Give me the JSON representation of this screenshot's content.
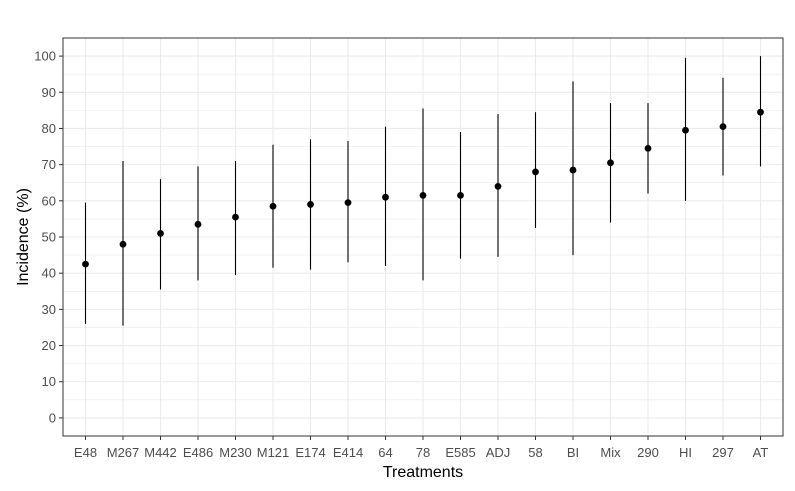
{
  "chart_data": {
    "type": "scatter",
    "xlabel": "Treatments",
    "ylabel": "Incidence (%)",
    "ylim": [
      -5,
      105
    ],
    "yticks": [
      0,
      10,
      20,
      30,
      40,
      50,
      60,
      70,
      80,
      90,
      100
    ],
    "grid": true,
    "legend": "none",
    "colors": {
      "point": "#000000",
      "errorbar": "#000000",
      "grid": "#ebebeb",
      "panel_border": "#333333",
      "tick_text": "#4d4d4d"
    },
    "categories": [
      "E48",
      "M267",
      "M442",
      "E486",
      "M230",
      "M121",
      "E174",
      "E414",
      "64",
      "78",
      "E585",
      "ADJ",
      "58",
      "BI",
      "Mix",
      "290",
      "HI",
      "297",
      "AT"
    ],
    "values": [
      42.5,
      48,
      51,
      53.5,
      55.5,
      58.5,
      59,
      59.5,
      61,
      61.5,
      61.5,
      64,
      68,
      68.5,
      70.5,
      74.5,
      79.5,
      80.5,
      84.5
    ],
    "lower": [
      26,
      25.5,
      35.5,
      38,
      39.5,
      41.5,
      41,
      43,
      42,
      38,
      44,
      44.5,
      52.5,
      45,
      54,
      62,
      60,
      67,
      69.5
    ],
    "upper": [
      59.5,
      71,
      66,
      69.5,
      71,
      75.5,
      77,
      76.5,
      80.5,
      85.5,
      79,
      84,
      84.5,
      93,
      87,
      87,
      99.5,
      94,
      100
    ]
  }
}
